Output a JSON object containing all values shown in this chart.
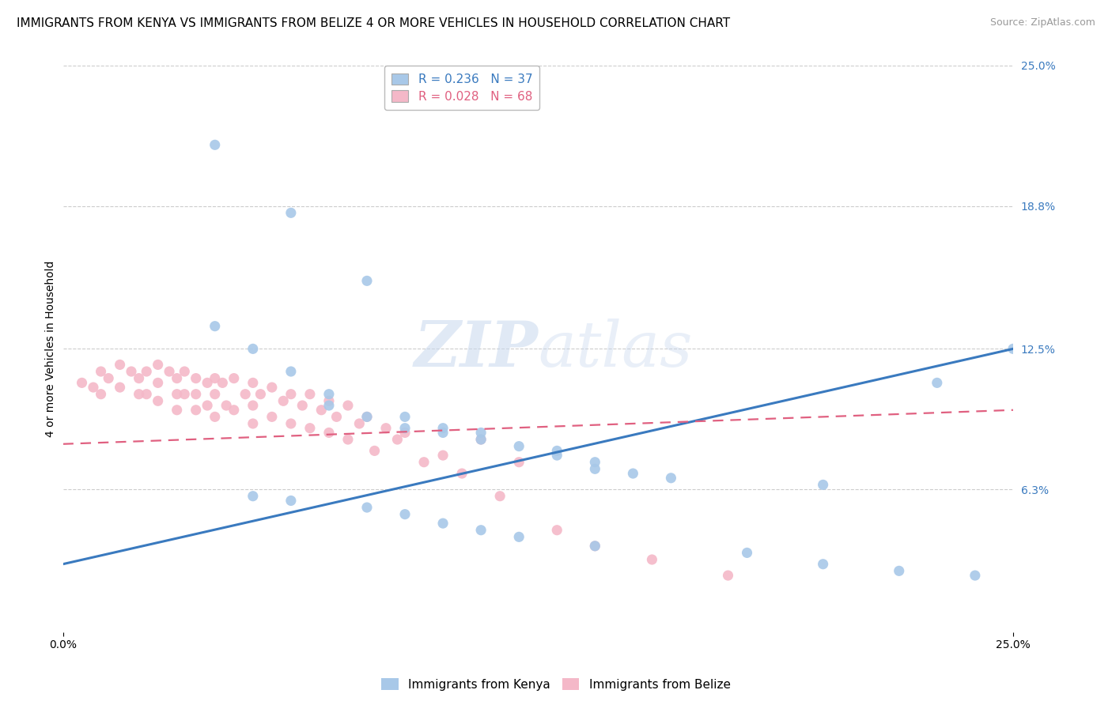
{
  "title": "IMMIGRANTS FROM KENYA VS IMMIGRANTS FROM BELIZE 4 OR MORE VEHICLES IN HOUSEHOLD CORRELATION CHART",
  "source": "Source: ZipAtlas.com",
  "ylabel": "4 or more Vehicles in Household",
  "xlim": [
    0.0,
    0.25
  ],
  "ylim": [
    0.0,
    0.25
  ],
  "ytick_labels_right": [
    "6.3%",
    "12.5%",
    "18.8%",
    "25.0%"
  ],
  "ytick_vals_right": [
    0.063,
    0.125,
    0.188,
    0.25
  ],
  "watermark_zip": "ZIP",
  "watermark_atlas": "atlas",
  "kenya_R": 0.236,
  "kenya_N": 37,
  "belize_R": 0.028,
  "belize_N": 68,
  "kenya_color": "#a8c8e8",
  "kenya_line_color": "#3a7abf",
  "belize_color": "#f4b8c8",
  "belize_line_color": "#e06080",
  "kenya_scatter_x": [
    0.04,
    0.06,
    0.08,
    0.04,
    0.05,
    0.06,
    0.07,
    0.07,
    0.08,
    0.09,
    0.09,
    0.1,
    0.1,
    0.11,
    0.11,
    0.12,
    0.13,
    0.13,
    0.14,
    0.14,
    0.15,
    0.16,
    0.2,
    0.23,
    0.25,
    0.05,
    0.06,
    0.08,
    0.09,
    0.1,
    0.11,
    0.12,
    0.14,
    0.18,
    0.2,
    0.22,
    0.24
  ],
  "kenya_scatter_y": [
    0.215,
    0.185,
    0.155,
    0.135,
    0.125,
    0.115,
    0.105,
    0.1,
    0.095,
    0.095,
    0.09,
    0.09,
    0.088,
    0.088,
    0.085,
    0.082,
    0.08,
    0.078,
    0.075,
    0.072,
    0.07,
    0.068,
    0.065,
    0.11,
    0.125,
    0.06,
    0.058,
    0.055,
    0.052,
    0.048,
    0.045,
    0.042,
    0.038,
    0.035,
    0.03,
    0.027,
    0.025
  ],
  "belize_scatter_x": [
    0.005,
    0.008,
    0.01,
    0.01,
    0.012,
    0.015,
    0.015,
    0.018,
    0.02,
    0.02,
    0.022,
    0.022,
    0.025,
    0.025,
    0.025,
    0.028,
    0.03,
    0.03,
    0.03,
    0.032,
    0.032,
    0.035,
    0.035,
    0.035,
    0.038,
    0.038,
    0.04,
    0.04,
    0.04,
    0.042,
    0.043,
    0.045,
    0.045,
    0.048,
    0.05,
    0.05,
    0.05,
    0.052,
    0.055,
    0.055,
    0.058,
    0.06,
    0.06,
    0.063,
    0.065,
    0.065,
    0.068,
    0.07,
    0.07,
    0.072,
    0.075,
    0.075,
    0.078,
    0.08,
    0.082,
    0.085,
    0.088,
    0.09,
    0.095,
    0.1,
    0.105,
    0.11,
    0.115,
    0.12,
    0.13,
    0.14,
    0.155,
    0.175
  ],
  "belize_scatter_y": [
    0.11,
    0.108,
    0.115,
    0.105,
    0.112,
    0.118,
    0.108,
    0.115,
    0.112,
    0.105,
    0.115,
    0.105,
    0.118,
    0.11,
    0.102,
    0.115,
    0.112,
    0.105,
    0.098,
    0.115,
    0.105,
    0.112,
    0.105,
    0.098,
    0.11,
    0.1,
    0.112,
    0.105,
    0.095,
    0.11,
    0.1,
    0.112,
    0.098,
    0.105,
    0.11,
    0.1,
    0.092,
    0.105,
    0.108,
    0.095,
    0.102,
    0.105,
    0.092,
    0.1,
    0.105,
    0.09,
    0.098,
    0.102,
    0.088,
    0.095,
    0.1,
    0.085,
    0.092,
    0.095,
    0.08,
    0.09,
    0.085,
    0.088,
    0.075,
    0.078,
    0.07,
    0.085,
    0.06,
    0.075,
    0.045,
    0.038,
    0.032,
    0.025
  ],
  "kenya_trend": [
    0.0,
    0.25
  ],
  "kenya_trend_y": [
    0.03,
    0.125
  ],
  "belize_trend": [
    0.0,
    0.25
  ],
  "belize_trend_y": [
    0.083,
    0.098
  ],
  "grid_color": "#cccccc",
  "background_color": "#ffffff",
  "title_fontsize": 11,
  "axis_label_fontsize": 10,
  "tick_fontsize": 10,
  "source_fontsize": 9,
  "legend_fontsize": 11
}
